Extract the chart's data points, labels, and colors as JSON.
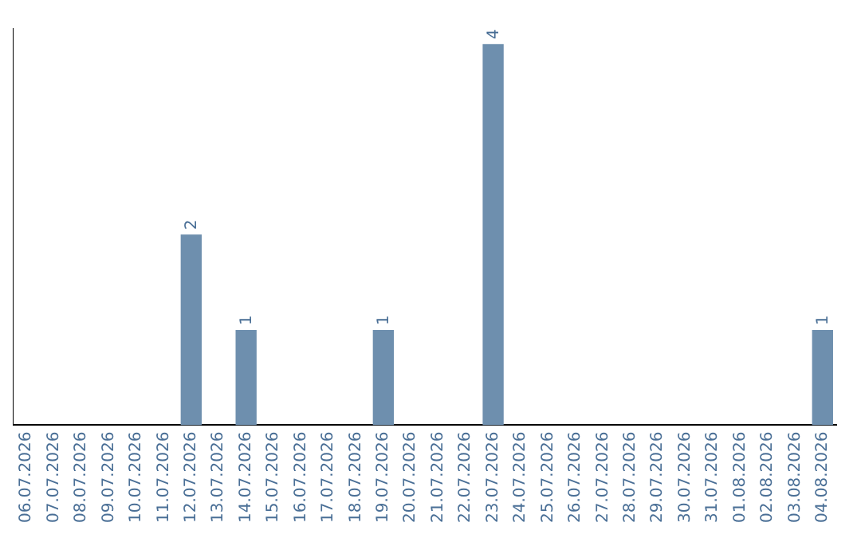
{
  "chart_data": {
    "type": "bar",
    "categories": [
      "06.07.2026",
      "07.07.2026",
      "08.07.2026",
      "09.07.2026",
      "10.07.2026",
      "11.07.2026",
      "12.07.2026",
      "13.07.2026",
      "14.07.2026",
      "15.07.2026",
      "16.07.2026",
      "17.07.2026",
      "18.07.2026",
      "19.07.2026",
      "20.07.2026",
      "21.07.2026",
      "22.07.2026",
      "23.07.2026",
      "24.07.2026",
      "25.07.2026",
      "26.07.2026",
      "27.07.2026",
      "28.07.2026",
      "29.07.2026",
      "30.07.2026",
      "31.07.2026",
      "01.08.2026",
      "02.08.2026",
      "03.08.2026",
      "04.08.2026"
    ],
    "values": [
      0,
      0,
      0,
      0,
      0,
      0,
      2,
      0,
      1,
      0,
      0,
      0,
      0,
      1,
      0,
      0,
      0,
      4,
      0,
      0,
      0,
      0,
      0,
      0,
      0,
      0,
      0,
      0,
      0,
      1
    ],
    "value_labels": [
      null,
      null,
      null,
      null,
      null,
      null,
      "2",
      null,
      "1",
      null,
      null,
      null,
      null,
      "1",
      null,
      null,
      null,
      "4",
      null,
      null,
      null,
      null,
      null,
      null,
      null,
      null,
      null,
      null,
      null,
      "1"
    ],
    "color": "#6e8fae",
    "ylim": [
      0,
      4.16
    ],
    "grid": false,
    "legend": false,
    "tick_labels": "x"
  }
}
